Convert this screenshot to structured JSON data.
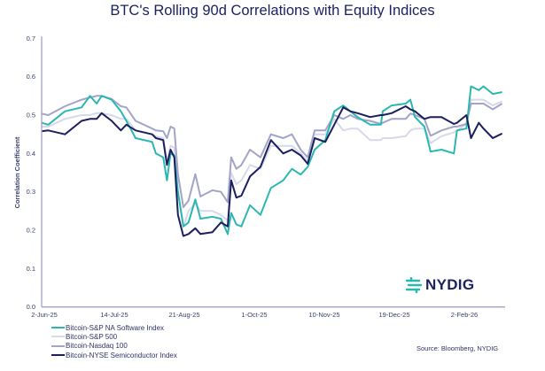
{
  "chart_data": {
    "type": "line",
    "title": "BTC's Rolling 90d Correlations with Equity Indices",
    "ylabel": "Correlation Coefficient",
    "xlabel": "",
    "ylim": [
      0.0,
      0.7
    ],
    "yticks": [
      "0.0",
      "0.1",
      "0.2",
      "0.3",
      "0.4",
      "0.5",
      "0.6",
      "0.7"
    ],
    "xticks": [
      {
        "label": "2-Jun-25",
        "date": "2025-06-02"
      },
      {
        "label": "14-Jul-25",
        "date": "2025-07-14"
      },
      {
        "label": "21-Aug-25",
        "date": "2025-08-21"
      },
      {
        "label": "1-Oct-25",
        "date": "2025-10-01"
      },
      {
        "label": "10-Nov-25",
        "date": "2025-11-10"
      },
      {
        "label": "19-Dec-25",
        "date": "2025-12-19"
      },
      {
        "label": "2-Feb-26",
        "date": "2026-02-02"
      }
    ],
    "grid": false,
    "legend_placement": "bottom-left",
    "x": [
      "2025-06-02",
      "2025-06-06",
      "2025-06-16",
      "2025-06-26",
      "2025-07-01",
      "2025-07-05",
      "2025-07-08",
      "2025-07-14",
      "2025-07-19",
      "2025-07-22",
      "2025-07-27",
      "2025-08-05",
      "2025-08-07",
      "2025-08-11",
      "2025-08-13",
      "2025-08-15",
      "2025-08-17",
      "2025-08-19",
      "2025-08-22",
      "2025-08-25",
      "2025-08-29",
      "2025-09-01",
      "2025-09-08",
      "2025-09-13",
      "2025-09-17",
      "2025-09-19",
      "2025-09-22",
      "2025-09-25",
      "2025-09-30",
      "2025-10-06",
      "2025-10-12",
      "2025-10-19",
      "2025-10-24",
      "2025-10-29",
      "2025-11-02",
      "2025-11-06",
      "2025-11-12",
      "2025-11-17",
      "2025-11-22",
      "2025-11-26",
      "2025-11-30",
      "2025-12-07",
      "2025-12-13",
      "2025-12-14",
      "2025-12-19",
      "2025-12-28",
      "2025-12-31",
      "2026-01-03",
      "2026-01-09",
      "2026-01-13",
      "2026-01-20",
      "2026-01-28",
      "2026-01-30",
      "2026-02-05",
      "2026-02-08",
      "2026-02-13",
      "2026-02-16",
      "2026-02-22",
      "2026-02-28"
    ],
    "series": [
      {
        "name": "Bitcoin-S&P 500",
        "color": "#d8d9e8",
        "values": [
          0.47,
          0.47,
          0.49,
          0.5,
          0.5,
          0.505,
          0.505,
          0.5,
          0.49,
          0.49,
          0.46,
          0.45,
          0.445,
          0.44,
          0.38,
          0.42,
          0.415,
          0.3,
          0.21,
          0.25,
          0.27,
          0.25,
          0.25,
          0.24,
          0.225,
          0.35,
          0.32,
          0.33,
          0.37,
          0.36,
          0.42,
          0.42,
          0.42,
          0.4,
          0.38,
          0.45,
          0.45,
          0.49,
          0.46,
          0.465,
          0.465,
          0.435,
          0.435,
          0.44,
          0.44,
          0.445,
          0.46,
          0.465,
          0.465,
          0.427,
          0.445,
          0.455,
          0.46,
          0.477,
          0.54,
          0.54,
          0.54,
          0.525,
          0.536
        ]
      },
      {
        "name": "Bitcoin-Nasdaq 100",
        "color": "#a3a4c8",
        "values": [
          0.504,
          0.5,
          0.523,
          0.54,
          0.546,
          0.55,
          0.55,
          0.542,
          0.523,
          0.52,
          0.485,
          0.465,
          0.46,
          0.458,
          0.44,
          0.47,
          0.465,
          0.346,
          0.26,
          0.277,
          0.346,
          0.288,
          0.304,
          0.3,
          0.273,
          0.39,
          0.36,
          0.37,
          0.41,
          0.39,
          0.45,
          0.44,
          0.45,
          0.41,
          0.39,
          0.46,
          0.46,
          0.5,
          0.49,
          0.5,
          0.49,
          0.485,
          0.477,
          0.48,
          0.49,
          0.49,
          0.504,
          0.5,
          0.49,
          0.446,
          0.46,
          0.47,
          0.47,
          0.477,
          0.53,
          0.53,
          0.53,
          0.515,
          0.53
        ]
      },
      {
        "name": "Bitcoin-S&P NA Software Index",
        "color": "#2ab7b0",
        "values": [
          0.48,
          0.475,
          0.51,
          0.52,
          0.55,
          0.53,
          0.55,
          0.54,
          0.51,
          0.485,
          0.44,
          0.43,
          0.4,
          0.39,
          0.33,
          0.4,
          0.395,
          0.3,
          0.21,
          0.22,
          0.28,
          0.23,
          0.235,
          0.23,
          0.19,
          0.245,
          0.215,
          0.21,
          0.265,
          0.24,
          0.31,
          0.33,
          0.36,
          0.345,
          0.365,
          0.41,
          0.435,
          0.51,
          0.525,
          0.51,
          0.495,
          0.475,
          0.475,
          0.51,
          0.525,
          0.53,
          0.54,
          0.495,
          0.47,
          0.405,
          0.41,
          0.4,
          0.46,
          0.465,
          0.575,
          0.565,
          0.575,
          0.555,
          0.56
        ]
      },
      {
        "name": "Bitcoin-NYSE Semiconductor Index",
        "color": "#1c1f5e",
        "values": [
          0.458,
          0.46,
          0.45,
          0.485,
          0.49,
          0.49,
          0.505,
          0.485,
          0.46,
          0.475,
          0.46,
          0.45,
          0.44,
          0.435,
          0.37,
          0.41,
          0.39,
          0.24,
          0.185,
          0.19,
          0.205,
          0.19,
          0.195,
          0.22,
          0.21,
          0.33,
          0.285,
          0.29,
          0.34,
          0.365,
          0.435,
          0.4,
          0.41,
          0.395,
          0.373,
          0.44,
          0.43,
          0.475,
          0.52,
          0.51,
          0.505,
          0.495,
          0.5,
          0.5,
          0.505,
          0.523,
          0.515,
          0.51,
          0.49,
          0.495,
          0.495,
          0.477,
          0.48,
          0.5,
          0.44,
          0.48,
          0.465,
          0.44,
          0.452
        ]
      }
    ],
    "legend": [
      {
        "label": "Bitcoin-S&P NA Software Index",
        "color": "#2ab7b0"
      },
      {
        "label": "Bitcoin-S&P 500",
        "color": "#d8d9e8"
      },
      {
        "label": "Bitcoin-Nasdaq 100",
        "color": "#a3a4c8"
      },
      {
        "label": "Bitcoin-NYSE Semiconductor Index",
        "color": "#1c1f5e"
      }
    ],
    "source": "Source: Bloomberg, NYDIG"
  },
  "logo": {
    "text": "NYDIG",
    "color": "#2ab7b0"
  }
}
